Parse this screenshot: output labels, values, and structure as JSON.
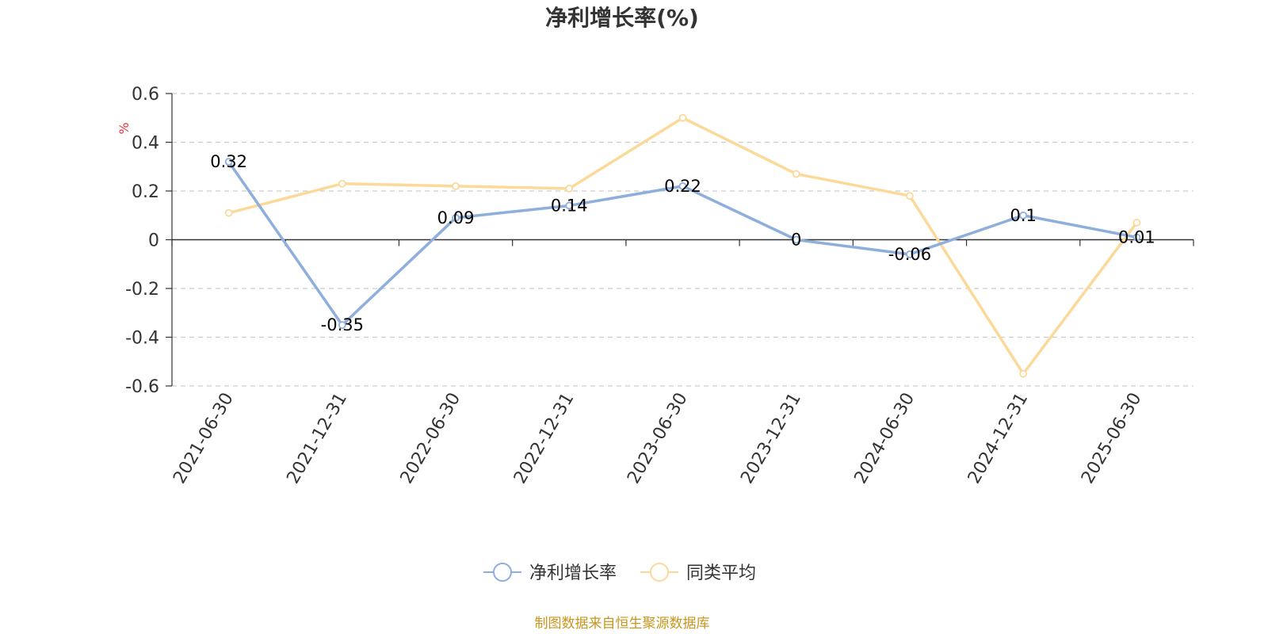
{
  "chart_data": {
    "type": "line",
    "title": "净利增长率(%)",
    "ylabel": "%",
    "categories": [
      "2021-06-30",
      "2021-12-31",
      "2022-06-30",
      "2022-12-31",
      "2023-06-30",
      "2023-12-31",
      "2024-06-30",
      "2024-12-31",
      "2025-06-30"
    ],
    "ylim": [
      -0.6,
      0.6
    ],
    "yticks": [
      0.6,
      0.4,
      0.2,
      0,
      -0.2,
      -0.4,
      -0.6
    ],
    "ytick_labels": [
      "0.6",
      "0.4",
      "0.2",
      "0",
      "-0.2",
      "-0.4",
      "-0.6"
    ],
    "grid": true,
    "legend_position": "bottom",
    "series": [
      {
        "name": "净利增长率",
        "color": "#8eaedb",
        "values": [
          0.32,
          -0.35,
          0.09,
          0.14,
          0.22,
          0,
          -0.06,
          0.1,
          0.01
        ],
        "labels": [
          "0.32",
          "-0.35",
          "0.09",
          "0.14",
          "0.22",
          "0",
          "-0.06",
          "0.1",
          "0.01"
        ]
      },
      {
        "name": "同类平均",
        "color": "#fbd999",
        "values": [
          0.11,
          0.23,
          0.22,
          0.21,
          0.5,
          0.27,
          0.18,
          -0.55,
          0.07
        ]
      }
    ],
    "source": "制图数据来自恒生聚源数据库"
  }
}
